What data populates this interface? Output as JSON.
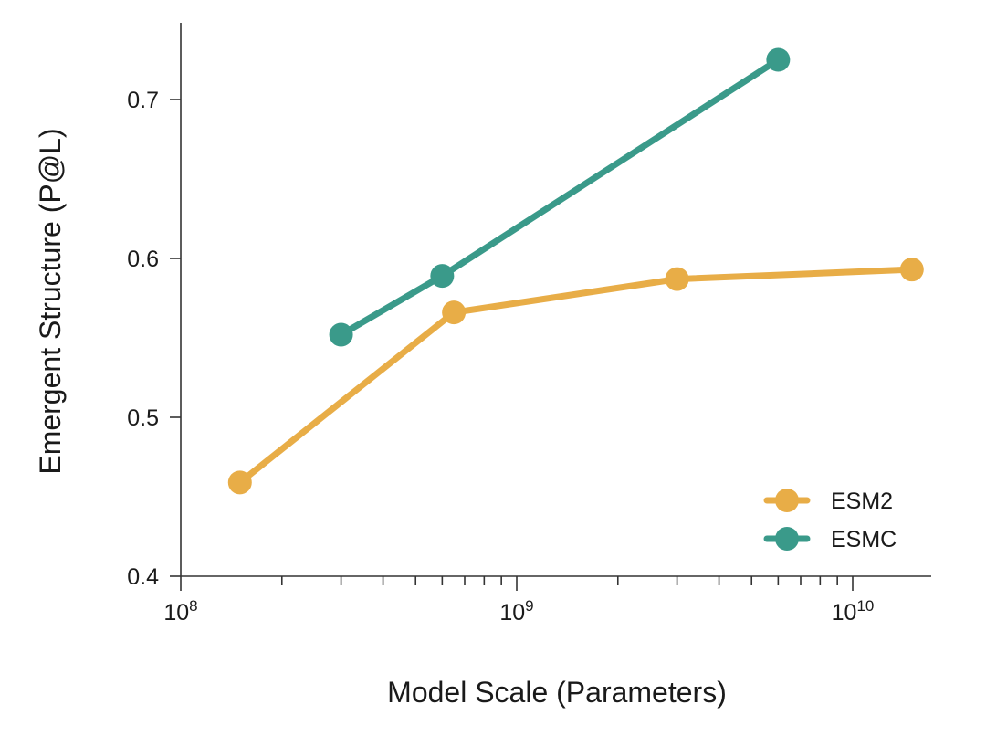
{
  "chart_data": {
    "type": "line",
    "xlabel": "Model Scale (Parameters)",
    "ylabel": "Emergent Structure (P@L)",
    "x_scale": "log",
    "xlim": [
      100000000,
      17000000000
    ],
    "ylim": [
      0.4,
      0.75
    ],
    "x_ticks": [
      {
        "base": "10",
        "exp": "8"
      },
      {
        "base": "10",
        "exp": "9"
      },
      {
        "base": "10",
        "exp": "10"
      }
    ],
    "y_ticks": [
      "0.4",
      "0.5",
      "0.6",
      "0.7"
    ],
    "y_tick_values": [
      0.4,
      0.5,
      0.6,
      0.7
    ],
    "legend_position": "bottom-right",
    "grid": false,
    "series": [
      {
        "name": "ESM2",
        "color": "#E8AD47",
        "points": [
          {
            "x": 150000000,
            "y": 0.459
          },
          {
            "x": 650000000,
            "y": 0.566
          },
          {
            "x": 3000000000,
            "y": 0.587
          },
          {
            "x": 15000000000,
            "y": 0.593
          }
        ]
      },
      {
        "name": "ESMC",
        "color": "#3A9A8A",
        "points": [
          {
            "x": 300000000,
            "y": 0.552
          },
          {
            "x": 600000000,
            "y": 0.589
          },
          {
            "x": 6000000000,
            "y": 0.725
          }
        ]
      }
    ]
  }
}
